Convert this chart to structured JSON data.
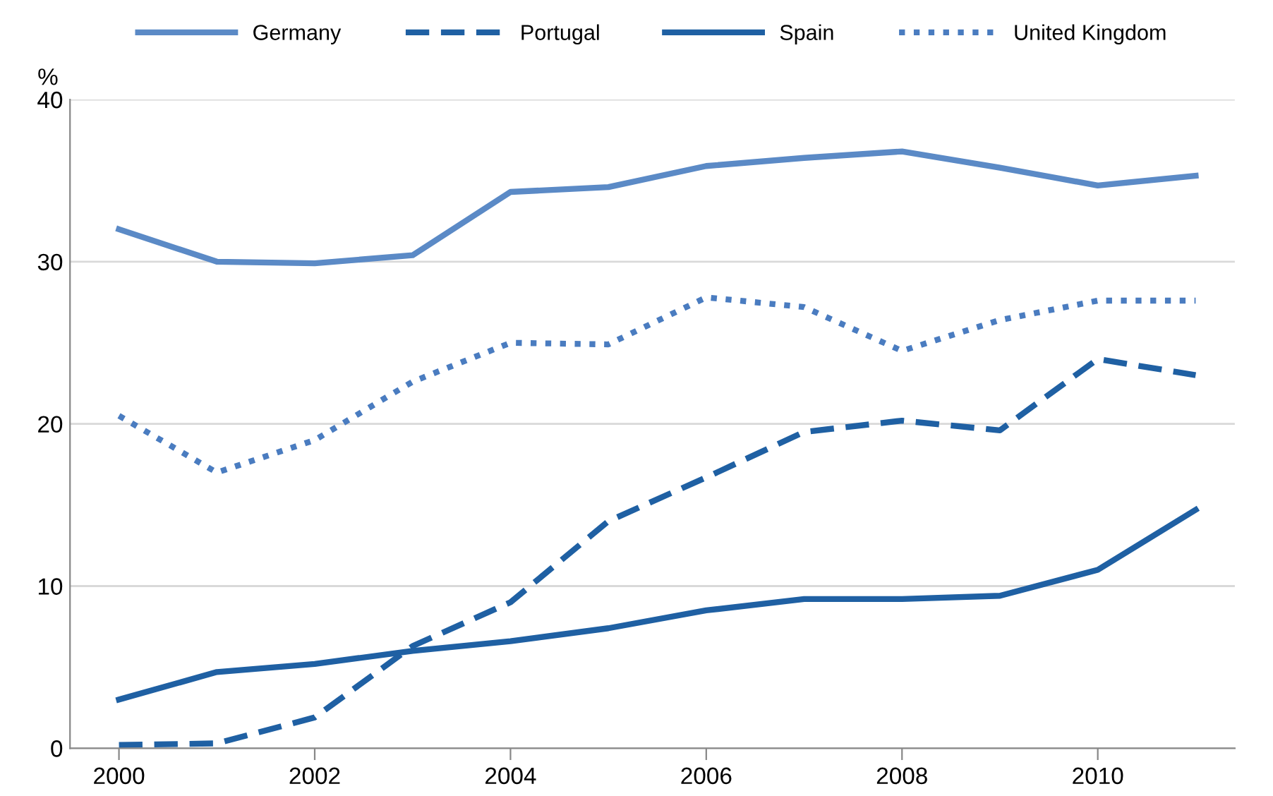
{
  "chart_data": {
    "type": "line",
    "ylabel": "%",
    "x": [
      2000,
      2001,
      2002,
      2003,
      2004,
      2005,
      2006,
      2007,
      2008,
      2009,
      2010,
      2011
    ],
    "series": [
      {
        "name": "Germany",
        "color": "#5b8ac6",
        "line_style": "solid",
        "values": [
          32.0,
          30.0,
          29.9,
          30.4,
          34.3,
          34.6,
          35.9,
          36.4,
          36.8,
          35.8,
          34.7,
          35.3
        ]
      },
      {
        "name": "Portugal",
        "color": "#1f60a3",
        "line_style": "dashed",
        "values": [
          0.2,
          0.3,
          1.9,
          6.3,
          9.0,
          14.0,
          16.7,
          19.5,
          20.2,
          19.6,
          24.0,
          23.0
        ]
      },
      {
        "name": "Spain",
        "color": "#1f60a3",
        "line_style": "solid",
        "values": [
          3.0,
          4.7,
          5.2,
          6.0,
          6.6,
          7.4,
          8.5,
          9.2,
          9.2,
          9.4,
          11.0,
          14.7
        ]
      },
      {
        "name": "United Kingdom",
        "color": "#4a7cc0",
        "line_style": "dotted",
        "values": [
          20.5,
          17.0,
          19.0,
          22.6,
          25.0,
          24.9,
          27.8,
          27.2,
          24.5,
          26.4,
          27.6,
          27.6
        ]
      }
    ],
    "xlim": [
      1999.5,
      2011.4
    ],
    "xticks": [
      2000,
      2002,
      2004,
      2006,
      2008,
      2010
    ],
    "ylim": [
      0,
      40
    ],
    "yticks": [
      0,
      10,
      20,
      30,
      40
    ],
    "grid": "y",
    "legend": "top",
    "marker": "none"
  }
}
